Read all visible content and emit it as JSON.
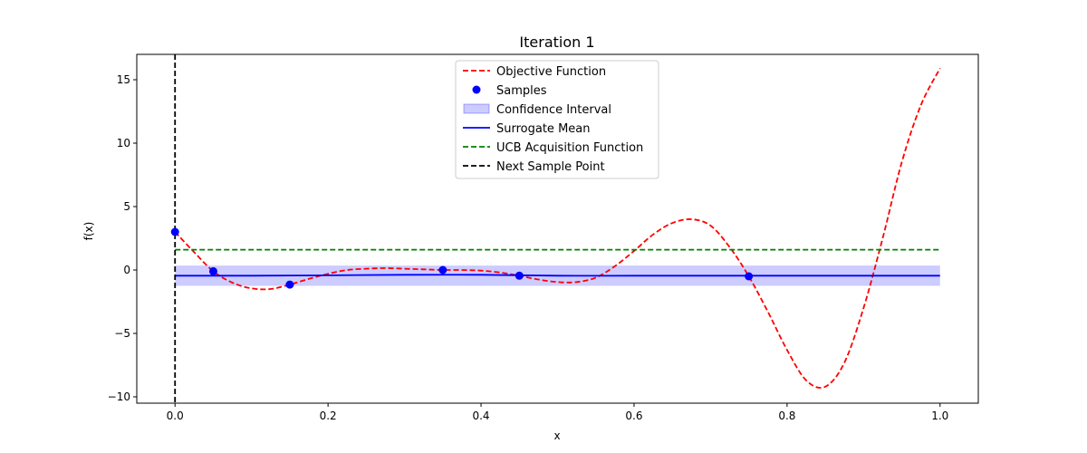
{
  "chart_data": {
    "type": "line",
    "title": "Iteration 1",
    "xlabel": "x",
    "ylabel": "f(x)",
    "xlim": [
      -0.05,
      1.05
    ],
    "ylim": [
      -10.5,
      17.0
    ],
    "x_ticks": [
      0.0,
      0.2,
      0.4,
      0.6,
      0.8,
      1.0
    ],
    "x_tick_labels": [
      "0.0",
      "0.2",
      "0.4",
      "0.6",
      "0.8",
      "1.0"
    ],
    "y_ticks": [
      -10,
      -5,
      0,
      5,
      10,
      15
    ],
    "y_tick_labels": [
      "−10",
      "−5",
      "0",
      "5",
      "10",
      "15"
    ],
    "grid": false,
    "legend_position": "top-center",
    "series": [
      {
        "name": "Objective Function",
        "kind": "line",
        "style": "dashed",
        "color": "#ff0000",
        "x": [
          0.0,
          0.025,
          0.05,
          0.075,
          0.1,
          0.125,
          0.15,
          0.175,
          0.2,
          0.225,
          0.25,
          0.275,
          0.3,
          0.325,
          0.35,
          0.375,
          0.4,
          0.425,
          0.45,
          0.475,
          0.5,
          0.525,
          0.55,
          0.575,
          0.6,
          0.625,
          0.65,
          0.675,
          0.7,
          0.725,
          0.75,
          0.775,
          0.8,
          0.825,
          0.85,
          0.875,
          0.9,
          0.925,
          0.95,
          0.975,
          1.0
        ],
        "y": [
          3.0,
          1.4,
          -0.1,
          -1.0,
          -1.45,
          -1.5,
          -1.15,
          -0.7,
          -0.3,
          0.0,
          0.1,
          0.15,
          0.1,
          0.05,
          0.0,
          0.0,
          -0.05,
          -0.2,
          -0.45,
          -0.75,
          -0.95,
          -0.95,
          -0.6,
          0.3,
          1.5,
          2.8,
          3.7,
          4.0,
          3.5,
          1.8,
          -0.5,
          -3.3,
          -6.3,
          -8.7,
          -9.2,
          -7.3,
          -3.0,
          2.5,
          8.5,
          13.0,
          15.9
        ]
      },
      {
        "name": "Samples",
        "kind": "scatter",
        "color": "#0000ff",
        "x": [
          0.0,
          0.05,
          0.15,
          0.35,
          0.45,
          0.75
        ],
        "y": [
          3.0,
          -0.1,
          -1.15,
          0.0,
          -0.45,
          -0.5
        ]
      },
      {
        "name": "Confidence Interval",
        "kind": "band",
        "color": "#0000ff",
        "opacity": 0.2,
        "x": [
          0.0,
          1.0
        ],
        "lower": [
          -1.25,
          -1.25
        ],
        "upper": [
          0.35,
          0.35
        ]
      },
      {
        "name": "Surrogate Mean",
        "kind": "line",
        "style": "solid",
        "color": "#0000ff",
        "x": [
          0.0,
          0.1,
          0.2,
          0.3,
          0.4,
          0.5,
          0.6,
          0.7,
          0.8,
          0.9,
          1.0
        ],
        "y": [
          -0.45,
          -0.45,
          -0.42,
          -0.38,
          -0.38,
          -0.45,
          -0.45,
          -0.45,
          -0.45,
          -0.45,
          -0.45
        ]
      },
      {
        "name": "UCB Acquisition Function",
        "kind": "line",
        "style": "dashed",
        "color": "#008000",
        "x": [
          0.0,
          1.0
        ],
        "y": [
          1.6,
          1.6
        ]
      },
      {
        "name": "Next Sample Point",
        "kind": "vline",
        "style": "dashed",
        "color": "#000000",
        "x": 0.0
      }
    ]
  }
}
